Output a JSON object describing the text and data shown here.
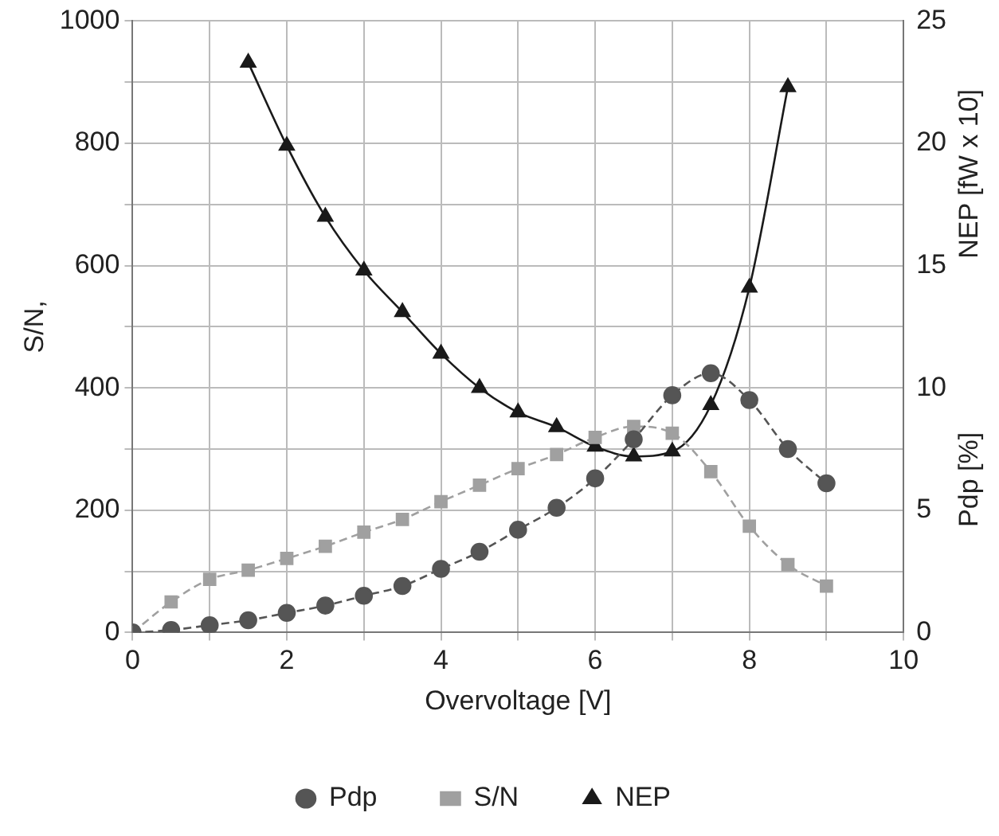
{
  "chart_data": {
    "type": "line",
    "xlabel": "Overvoltage [V]",
    "ylabel": "S/N,",
    "y2label": "NEP [fW x 10]",
    "annotations": [
      "Pdp [%]"
    ],
    "x": [
      0,
      0.5,
      1,
      1.5,
      2,
      2.5,
      3,
      3.5,
      4,
      4.5,
      5,
      5.5,
      6,
      6.5,
      7,
      7.5,
      8,
      8.5,
      9
    ],
    "series": [
      {
        "name": "Pdp",
        "color": "#555555",
        "axis": "y2",
        "marker": "circle",
        "line_style": "dashed",
        "values": [
          0,
          0.1,
          0.3,
          0.5,
          0.8,
          1.1,
          1.5,
          1.9,
          2.6,
          3.3,
          4.2,
          5.1,
          6.3,
          7.9,
          9.7,
          10.6,
          9.5,
          7.5,
          6.1
        ]
      },
      {
        "name": "S/N",
        "color": "#a0a0a0",
        "marker": "square",
        "line_style": "dashed",
        "values": [
          0,
          50,
          87,
          102,
          121,
          141,
          164,
          185,
          214,
          241,
          268,
          291,
          319,
          337,
          326,
          263,
          174,
          111,
          76
        ]
      },
      {
        "name": "NEP",
        "color": "#1a1a1a",
        "axis": "y2",
        "marker": "triangle",
        "line_style": "solid",
        "x": [
          1.5,
          2,
          2.5,
          3,
          3.5,
          4,
          4.5,
          5,
          5.5,
          6,
          6.5,
          7,
          7.5,
          8,
          8.5
        ],
        "values": [
          23.3,
          19.9,
          17.0,
          14.8,
          13.1,
          11.4,
          10.0,
          9.0,
          8.4,
          7.6,
          7.2,
          7.4,
          9.3,
          14.1,
          22.3
        ]
      }
    ],
    "xlim": [
      0,
      10
    ],
    "xticks": [
      0,
      {
        "value": 1,
        "label": null
      },
      2,
      {
        "value": 3,
        "label": null
      },
      4,
      {
        "value": 5,
        "label": null
      },
      6,
      {
        "value": 7,
        "label": null
      },
      8,
      {
        "value": 9,
        "label": null
      },
      10
    ],
    "ylim": [
      0,
      1000
    ],
    "yticks": [
      0,
      {
        "value": 100,
        "label": null
      },
      200,
      {
        "value": 300,
        "label": null
      },
      400,
      {
        "value": 500,
        "label": null
      },
      600,
      {
        "value": 700,
        "label": null
      },
      800,
      {
        "value": 900,
        "label": null
      },
      1000
    ],
    "y2lim": [
      0,
      25
    ],
    "y2ticks": [
      0,
      5,
      10,
      15,
      20,
      25
    ],
    "grid": true,
    "legend": "bottom"
  }
}
